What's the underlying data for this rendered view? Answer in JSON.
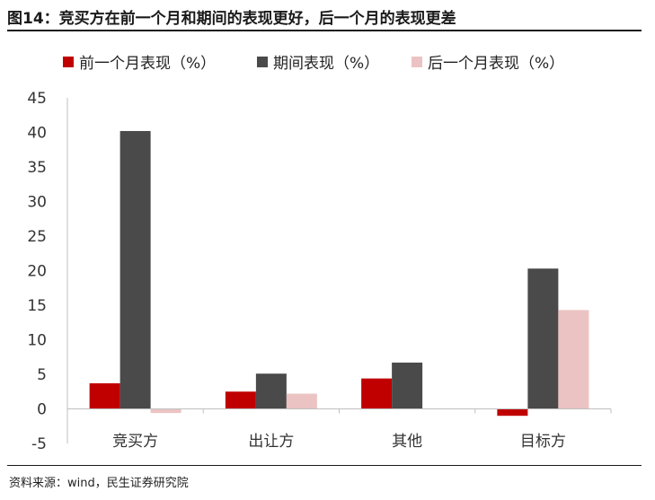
{
  "title": "图14：竞买方在前一个月和期间的表现更好，后一个月的表现更差",
  "source": "资料来源：wind，民生证券研究院",
  "chart_data": {
    "type": "bar",
    "categories": [
      "竞买方",
      "出让方",
      "其他",
      "目标方"
    ],
    "series": [
      {
        "name": "前一个月表现（%）",
        "color": "#c00000",
        "values": [
          3.7,
          2.5,
          4.4,
          -1.0
        ]
      },
      {
        "name": "期间表现（%）",
        "color": "#4a4a4a",
        "values": [
          40.2,
          5.1,
          6.7,
          20.3
        ]
      },
      {
        "name": "后一个月表现（%）",
        "color": "#ecc3c3",
        "values": [
          -0.6,
          2.2,
          0.0,
          14.3
        ]
      }
    ],
    "ylim": [
      -5,
      45
    ],
    "yticks": [
      "-5",
      "0",
      "5",
      "10",
      "15",
      "20",
      "25",
      "30",
      "35",
      "40",
      "45"
    ],
    "legend_position": "top",
    "grid": false
  }
}
